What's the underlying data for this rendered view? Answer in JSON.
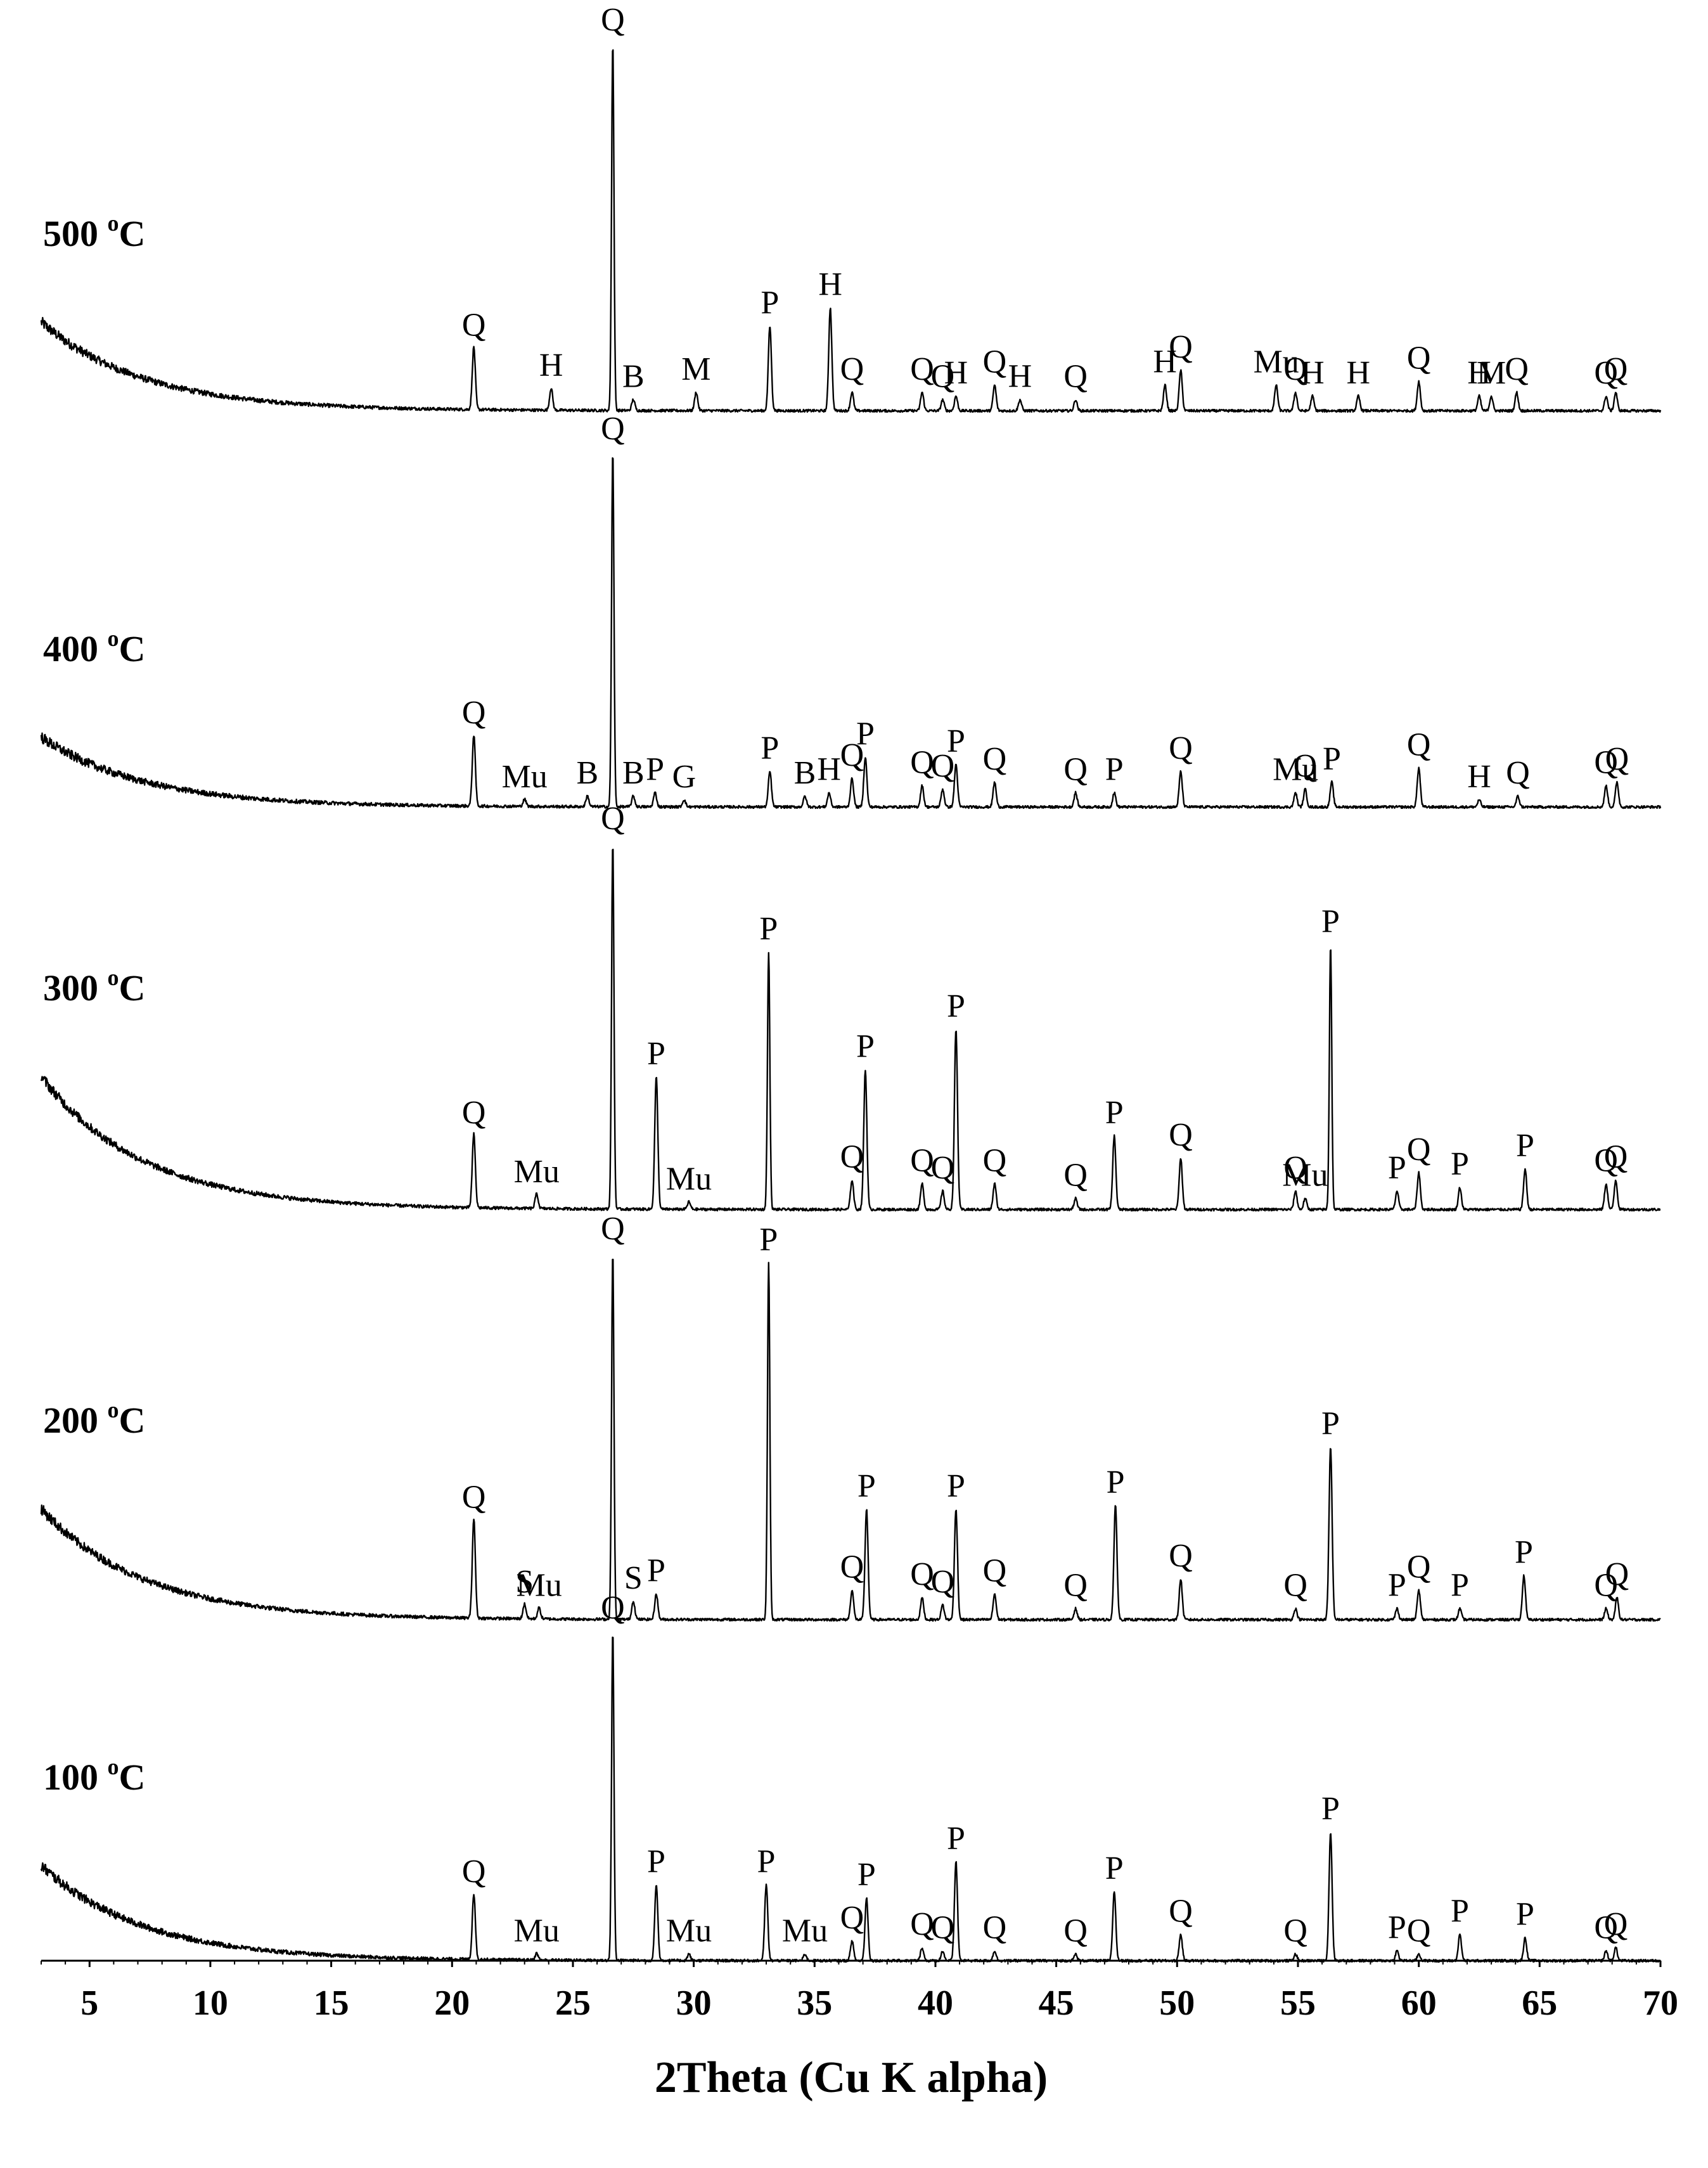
{
  "chart_data": {
    "type": "line",
    "xlabel": "2Theta (Cu K alpha)",
    "xlim": [
      3,
      70
    ],
    "xticks": [
      5,
      10,
      15,
      20,
      25,
      30,
      35,
      40,
      45,
      50,
      55,
      60,
      65,
      70
    ],
    "grid": false,
    "colors": {
      "line": "#000000",
      "text": "#000000",
      "background": "#ffffff"
    },
    "series": [
      {
        "name": "500 °C",
        "temp_value": "500 ",
        "temp_unit": "C",
        "peaks": [
          {
            "x": 20.9,
            "h": 0.17,
            "label": "Q"
          },
          {
            "x": 24.1,
            "h": 0.06,
            "label": "H"
          },
          {
            "x": 26.65,
            "h": 1.0,
            "label": "Q"
          },
          {
            "x": 27.5,
            "h": 0.03,
            "label": "B"
          },
          {
            "x": 30.1,
            "h": 0.05,
            "label": "M"
          },
          {
            "x": 33.15,
            "h": 0.23,
            "label": "P"
          },
          {
            "x": 35.65,
            "h": 0.28,
            "label": "H"
          },
          {
            "x": 36.55,
            "h": 0.05,
            "label": "Q"
          },
          {
            "x": 39.45,
            "h": 0.05,
            "label": "Q"
          },
          {
            "x": 40.3,
            "h": 0.03,
            "label": "Q"
          },
          {
            "x": 40.85,
            "h": 0.04,
            "label": "H"
          },
          {
            "x": 42.45,
            "h": 0.07,
            "label": "Q"
          },
          {
            "x": 43.5,
            "h": 0.03,
            "label": "H"
          },
          {
            "x": 45.8,
            "h": 0.03,
            "label": "Q"
          },
          {
            "x": 49.5,
            "h": 0.07,
            "label": "H"
          },
          {
            "x": 50.15,
            "h": 0.11,
            "label": "Q"
          },
          {
            "x": 54.1,
            "h": 0.07,
            "label": "Mu"
          },
          {
            "x": 54.9,
            "h": 0.05,
            "label": "Q"
          },
          {
            "x": 55.6,
            "h": 0.04,
            "label": "H"
          },
          {
            "x": 57.5,
            "h": 0.04,
            "label": "H"
          },
          {
            "x": 60.0,
            "h": 0.08,
            "label": "Q"
          },
          {
            "x": 62.5,
            "h": 0.04,
            "label": "H"
          },
          {
            "x": 63.0,
            "h": 0.04,
            "label": "M"
          },
          {
            "x": 64.05,
            "h": 0.05,
            "label": "Q"
          },
          {
            "x": 67.75,
            "h": 0.04,
            "label": "Q"
          },
          {
            "x": 68.15,
            "h": 0.05,
            "label": "Q"
          }
        ]
      },
      {
        "name": "400 °C",
        "temp_value": "400 ",
        "temp_unit": "C",
        "peaks": [
          {
            "x": 20.9,
            "h": 0.2,
            "label": "Q"
          },
          {
            "x": 23.0,
            "h": 0.02,
            "label": "Mu"
          },
          {
            "x": 25.6,
            "h": 0.03,
            "label": "B"
          },
          {
            "x": 26.65,
            "h": 1.0,
            "label": "Q"
          },
          {
            "x": 27.5,
            "h": 0.03,
            "label": "B"
          },
          {
            "x": 28.4,
            "h": 0.04,
            "label": "P"
          },
          {
            "x": 29.6,
            "h": 0.02,
            "label": "G"
          },
          {
            "x": 33.15,
            "h": 0.1,
            "label": "P"
          },
          {
            "x": 34.6,
            "h": 0.03,
            "label": "B"
          },
          {
            "x": 35.6,
            "h": 0.04,
            "label": "H"
          },
          {
            "x": 36.55,
            "h": 0.08,
            "label": "Q"
          },
          {
            "x": 37.1,
            "h": 0.14,
            "label": "P"
          },
          {
            "x": 39.45,
            "h": 0.06,
            "label": "Q"
          },
          {
            "x": 40.3,
            "h": 0.05,
            "label": "Q"
          },
          {
            "x": 40.85,
            "h": 0.12,
            "label": "P"
          },
          {
            "x": 42.45,
            "h": 0.07,
            "label": "Q"
          },
          {
            "x": 45.8,
            "h": 0.04,
            "label": "Q"
          },
          {
            "x": 47.4,
            "h": 0.04,
            "label": "P"
          },
          {
            "x": 50.15,
            "h": 0.1,
            "label": "Q"
          },
          {
            "x": 54.9,
            "h": 0.04,
            "label": "Mu"
          },
          {
            "x": 55.3,
            "h": 0.05,
            "label": "Q"
          },
          {
            "x": 56.4,
            "h": 0.07,
            "label": "P"
          },
          {
            "x": 60.0,
            "h": 0.11,
            "label": "Q"
          },
          {
            "x": 62.5,
            "h": 0.02,
            "label": "H"
          },
          {
            "x": 64.1,
            "h": 0.03,
            "label": "Q"
          },
          {
            "x": 67.75,
            "h": 0.06,
            "label": "Q"
          },
          {
            "x": 68.2,
            "h": 0.07,
            "label": "Q"
          }
        ]
      },
      {
        "name": "300 °C",
        "temp_value": "300 ",
        "temp_unit": "C",
        "peaks": [
          {
            "x": 20.9,
            "h": 0.2,
            "label": "Q"
          },
          {
            "x": 23.5,
            "h": 0.04,
            "label": "Mu"
          },
          {
            "x": 26.65,
            "h": 1.0,
            "label": "Q"
          },
          {
            "x": 28.45,
            "h": 0.36,
            "label": "P"
          },
          {
            "x": 29.8,
            "h": 0.02,
            "label": "Mu"
          },
          {
            "x": 33.1,
            "h": 0.7,
            "label": "P"
          },
          {
            "x": 36.55,
            "h": 0.08,
            "label": "Q"
          },
          {
            "x": 37.1,
            "h": 0.38,
            "label": "P"
          },
          {
            "x": 39.45,
            "h": 0.07,
            "label": "Q"
          },
          {
            "x": 40.3,
            "h": 0.05,
            "label": "Q"
          },
          {
            "x": 40.85,
            "h": 0.49,
            "label": "P"
          },
          {
            "x": 42.45,
            "h": 0.07,
            "label": "Q"
          },
          {
            "x": 45.8,
            "h": 0.03,
            "label": "Q"
          },
          {
            "x": 47.4,
            "h": 0.2,
            "label": "P"
          },
          {
            "x": 50.15,
            "h": 0.14,
            "label": "Q"
          },
          {
            "x": 54.9,
            "h": 0.05,
            "label": "Q"
          },
          {
            "x": 55.3,
            "h": 0.03,
            "label": "Mu"
          },
          {
            "x": 56.35,
            "h": 0.72,
            "label": "P"
          },
          {
            "x": 59.1,
            "h": 0.05,
            "label": "P"
          },
          {
            "x": 60.0,
            "h": 0.1,
            "label": "Q"
          },
          {
            "x": 61.7,
            "h": 0.06,
            "label": "P"
          },
          {
            "x": 64.4,
            "h": 0.11,
            "label": "P"
          },
          {
            "x": 67.75,
            "h": 0.07,
            "label": "Q"
          },
          {
            "x": 68.15,
            "h": 0.08,
            "label": "Q"
          }
        ]
      },
      {
        "name": "200 °C",
        "temp_value": "200 ",
        "temp_unit": "C",
        "peaks": [
          {
            "x": 20.9,
            "h": 0.27,
            "label": "Q"
          },
          {
            "x": 23.0,
            "h": 0.04,
            "label": "S"
          },
          {
            "x": 23.6,
            "h": 0.03,
            "label": "Mu"
          },
          {
            "x": 26.65,
            "h": 1.0,
            "label": "Q"
          },
          {
            "x": 27.5,
            "h": 0.05,
            "label": "S"
          },
          {
            "x": 28.45,
            "h": 0.07,
            "label": "P"
          },
          {
            "x": 33.1,
            "h": 0.97,
            "label": "P"
          },
          {
            "x": 36.55,
            "h": 0.08,
            "label": "Q"
          },
          {
            "x": 37.15,
            "h": 0.3,
            "label": "P"
          },
          {
            "x": 39.45,
            "h": 0.06,
            "label": "Q"
          },
          {
            "x": 40.3,
            "h": 0.04,
            "label": "Q"
          },
          {
            "x": 40.85,
            "h": 0.3,
            "label": "P"
          },
          {
            "x": 42.45,
            "h": 0.07,
            "label": "Q"
          },
          {
            "x": 45.8,
            "h": 0.03,
            "label": "Q"
          },
          {
            "x": 47.45,
            "h": 0.31,
            "label": "P"
          },
          {
            "x": 50.15,
            "h": 0.11,
            "label": "Q"
          },
          {
            "x": 54.9,
            "h": 0.03,
            "label": "Q"
          },
          {
            "x": 56.35,
            "h": 0.47,
            "label": "P"
          },
          {
            "x": 59.1,
            "h": 0.03,
            "label": "P"
          },
          {
            "x": 60.0,
            "h": 0.08,
            "label": "Q"
          },
          {
            "x": 61.7,
            "h": 0.03,
            "label": "P"
          },
          {
            "x": 64.35,
            "h": 0.12,
            "label": "P"
          },
          {
            "x": 67.75,
            "h": 0.03,
            "label": "Q"
          },
          {
            "x": 68.2,
            "h": 0.06,
            "label": "Q"
          }
        ]
      },
      {
        "name": "100 °C",
        "temp_value": "100 ",
        "temp_unit": "C",
        "peaks": [
          {
            "x": 20.9,
            "h": 0.2,
            "label": "Q"
          },
          {
            "x": 23.5,
            "h": 0.02,
            "label": "Mu"
          },
          {
            "x": 26.65,
            "h": 1.0,
            "label": "Q"
          },
          {
            "x": 28.45,
            "h": 0.23,
            "label": "P"
          },
          {
            "x": 29.8,
            "h": 0.02,
            "label": "Mu"
          },
          {
            "x": 33.0,
            "h": 0.23,
            "label": "P"
          },
          {
            "x": 34.6,
            "h": 0.02,
            "label": "Mu"
          },
          {
            "x": 36.55,
            "h": 0.06,
            "label": "Q"
          },
          {
            "x": 37.15,
            "h": 0.19,
            "label": "P"
          },
          {
            "x": 39.45,
            "h": 0.04,
            "label": "Q"
          },
          {
            "x": 40.3,
            "h": 0.03,
            "label": "Q"
          },
          {
            "x": 40.85,
            "h": 0.3,
            "label": "P"
          },
          {
            "x": 42.45,
            "h": 0.03,
            "label": "Q"
          },
          {
            "x": 45.8,
            "h": 0.02,
            "label": "Q"
          },
          {
            "x": 47.4,
            "h": 0.21,
            "label": "P"
          },
          {
            "x": 50.15,
            "h": 0.08,
            "label": "Q"
          },
          {
            "x": 54.9,
            "h": 0.02,
            "label": "Q"
          },
          {
            "x": 56.35,
            "h": 0.39,
            "label": "P"
          },
          {
            "x": 59.1,
            "h": 0.03,
            "label": "P"
          },
          {
            "x": 60.0,
            "h": 0.02,
            "label": "Q"
          },
          {
            "x": 61.7,
            "h": 0.08,
            "label": "P"
          },
          {
            "x": 64.4,
            "h": 0.07,
            "label": "P"
          },
          {
            "x": 67.75,
            "h": 0.03,
            "label": "Q"
          },
          {
            "x": 68.15,
            "h": 0.04,
            "label": "Q"
          }
        ]
      }
    ]
  }
}
